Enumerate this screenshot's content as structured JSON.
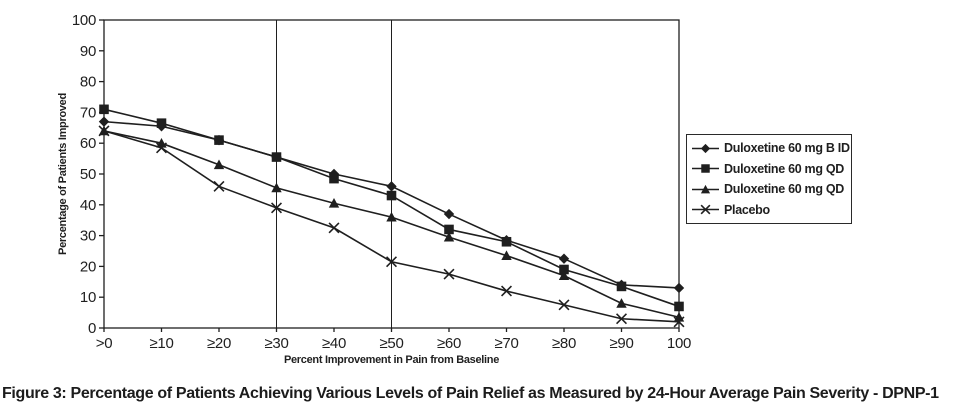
{
  "figure": {
    "caption": "Figure 3: Percentage of Patients Achieving Various Levels of Pain Relief as Measured by 24-Hour Average Pain Severity - DPNP-1"
  },
  "chart_data": {
    "type": "line",
    "title": "",
    "xlabel": "Percent Improvement in Pain from Baseline",
    "ylabel": "Percentage of Patients Improved",
    "categories": [
      ">0",
      "≥10",
      "≥20",
      "≥30",
      "≥40",
      "≥50",
      "≥60",
      "≥70",
      "≥80",
      "≥90",
      "100"
    ],
    "ylim": [
      0,
      100
    ],
    "ytick_step": 10,
    "grid": "off",
    "vertical_reference_lines_at": [
      "≥30",
      "≥50"
    ],
    "legend_position": "right",
    "line_color": "#1f1f1f",
    "series": [
      {
        "name": "Duloxetine 60 mg B ID",
        "marker": "diamond",
        "values": [
          67,
          65.5,
          61,
          55.5,
          50,
          46,
          37,
          28.5,
          22.5,
          14,
          13
        ]
      },
      {
        "name": "Duloxetine 60 mg QD",
        "marker": "square",
        "values": [
          71,
          66.5,
          61,
          55.5,
          48.5,
          43,
          32,
          28,
          19,
          13.5,
          7
        ]
      },
      {
        "name": "Duloxetine 60 mg QD",
        "marker": "triangle",
        "values": [
          64,
          60,
          53,
          45.5,
          40.5,
          36,
          29.5,
          23.5,
          17,
          8,
          3.5
        ]
      },
      {
        "name": "Placebo",
        "marker": "x",
        "values": [
          64,
          58.5,
          46,
          39,
          32.5,
          21.5,
          17.5,
          12,
          7.5,
          3,
          2
        ]
      }
    ]
  }
}
